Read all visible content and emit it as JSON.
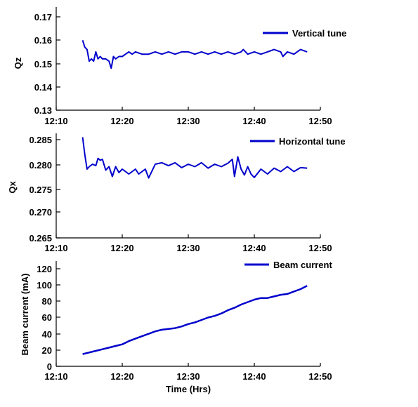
{
  "chart_data": [
    {
      "type": "line",
      "ylabel": "Qz",
      "xlabel": "",
      "xlim": [
        "12:10",
        "12:50"
      ],
      "ylim": [
        0.13,
        0.17
      ],
      "x_ticks": [
        "12:10",
        "12:20",
        "12:30",
        "12:40",
        "12:50"
      ],
      "y_ticks": [
        "0.13",
        "0.14",
        "0.15",
        "0.16",
        "0.17"
      ],
      "grid": false,
      "legend_position": "top-right",
      "series": [
        {
          "name": "Vertical tune",
          "color": "#0000cc",
          "x": [
            "12:14:00",
            "12:14:20",
            "12:14:40",
            "12:15:00",
            "12:15:20",
            "12:15:40",
            "12:16:00",
            "12:16:20",
            "12:16:40",
            "12:17:00",
            "12:17:30",
            "12:18:00",
            "12:18:20",
            "12:18:40",
            "12:19:00",
            "12:19:30",
            "12:20:00",
            "12:20:30",
            "12:21:00",
            "12:21:30",
            "12:22:00",
            "12:23:00",
            "12:24:00",
            "12:25:00",
            "12:26:00",
            "12:27:00",
            "12:28:00",
            "12:29:00",
            "12:30:00",
            "12:31:00",
            "12:32:00",
            "12:33:00",
            "12:34:00",
            "12:35:00",
            "12:36:00",
            "12:37:00",
            "12:38:00",
            "12:38:20",
            "12:39:00",
            "12:40:00",
            "12:41:00",
            "12:42:00",
            "12:43:00",
            "12:44:00",
            "12:44:20",
            "12:45:00",
            "12:46:00",
            "12:47:00",
            "12:48:00"
          ],
          "y": [
            0.16,
            0.157,
            0.156,
            0.151,
            0.152,
            0.151,
            0.155,
            0.152,
            0.153,
            0.152,
            0.152,
            0.151,
            0.148,
            0.153,
            0.152,
            0.153,
            0.153,
            0.154,
            0.155,
            0.154,
            0.155,
            0.154,
            0.154,
            0.155,
            0.154,
            0.155,
            0.154,
            0.155,
            0.155,
            0.154,
            0.155,
            0.154,
            0.155,
            0.154,
            0.155,
            0.154,
            0.155,
            0.156,
            0.154,
            0.155,
            0.154,
            0.155,
            0.156,
            0.155,
            0.153,
            0.155,
            0.154,
            0.156,
            0.155
          ]
        }
      ]
    },
    {
      "type": "line",
      "ylabel": "Qx",
      "xlabel": "",
      "xlim": [
        "12:10",
        "12:50"
      ],
      "ylim": [
        0.265,
        0.285
      ],
      "x_ticks": [
        "12:10",
        "12:20",
        "12:30",
        "12:40",
        "12:50"
      ],
      "y_ticks": [
        "0.265",
        "0.270",
        "0.275",
        "0.280",
        "0.285"
      ],
      "grid": false,
      "legend_position": "top-right",
      "series": [
        {
          "name": "Horizontal tune",
          "color": "#0000cc",
          "x": [
            "12:14:00",
            "12:14:20",
            "12:14:40",
            "12:15:00",
            "12:15:30",
            "12:16:00",
            "12:16:20",
            "12:16:40",
            "12:17:00",
            "12:17:30",
            "12:18:00",
            "12:18:30",
            "12:19:00",
            "12:19:30",
            "12:20:00",
            "12:21:00",
            "12:22:00",
            "12:22:30",
            "12:23:00",
            "12:23:30",
            "12:24:00",
            "12:25:00",
            "12:26:00",
            "12:27:00",
            "12:28:00",
            "12:29:00",
            "12:30:00",
            "12:31:00",
            "12:32:00",
            "12:33:00",
            "12:34:00",
            "12:35:00",
            "12:36:00",
            "12:36:40",
            "12:37:00",
            "12:37:30",
            "12:38:00",
            "12:38:30",
            "12:39:00",
            "12:39:30",
            "12:40:00",
            "12:41:00",
            "12:42:00",
            "12:43:00",
            "12:44:00",
            "12:45:00",
            "12:46:00",
            "12:47:00",
            "12:48:00"
          ],
          "y": [
            0.2855,
            0.282,
            0.279,
            0.2795,
            0.28,
            0.2797,
            0.2812,
            0.2808,
            0.281,
            0.2788,
            0.2795,
            0.2775,
            0.2795,
            0.2783,
            0.279,
            0.278,
            0.279,
            0.278,
            0.2785,
            0.279,
            0.2772,
            0.28,
            0.2803,
            0.2797,
            0.2803,
            0.2793,
            0.28,
            0.2795,
            0.2803,
            0.2792,
            0.28,
            0.2795,
            0.2802,
            0.281,
            0.2775,
            0.2815,
            0.279,
            0.2778,
            0.2795,
            0.278,
            0.2773,
            0.279,
            0.278,
            0.2792,
            0.2785,
            0.2795,
            0.2785,
            0.2793,
            0.2792
          ]
        }
      ]
    },
    {
      "type": "line",
      "ylabel": "Beam current (mA)",
      "xlabel": "Time (Hrs)",
      "xlim": [
        "12:10",
        "12:50"
      ],
      "ylim": [
        0,
        120
      ],
      "x_ticks": [
        "12:10",
        "12:20",
        "12:30",
        "12:40",
        "12:50"
      ],
      "y_ticks": [
        "0",
        "20",
        "40",
        "60",
        "80",
        "100",
        "120"
      ],
      "grid": false,
      "legend_position": "top-right",
      "series": [
        {
          "name": "Beam current",
          "color": "#0000cc",
          "x": [
            "12:14:00",
            "12:15:00",
            "12:16:00",
            "12:17:00",
            "12:18:00",
            "12:19:00",
            "12:20:00",
            "12:21:00",
            "12:22:00",
            "12:23:00",
            "12:24:00",
            "12:25:00",
            "12:26:00",
            "12:27:00",
            "12:28:00",
            "12:29:00",
            "12:30:00",
            "12:31:00",
            "12:32:00",
            "12:33:00",
            "12:34:00",
            "12:35:00",
            "12:36:00",
            "12:37:00",
            "12:38:00",
            "12:39:00",
            "12:40:00",
            "12:41:00",
            "12:42:00",
            "12:43:00",
            "12:44:00",
            "12:45:00",
            "12:46:00",
            "12:47:00",
            "12:48:00"
          ],
          "y": [
            15,
            17,
            19,
            21,
            23,
            25,
            27,
            31,
            34,
            37,
            40,
            43,
            45,
            46,
            47,
            49,
            52,
            54,
            57,
            60,
            62,
            65,
            69,
            72,
            76,
            79,
            82,
            84,
            84,
            86,
            88,
            89,
            92,
            95,
            99
          ]
        }
      ]
    }
  ]
}
